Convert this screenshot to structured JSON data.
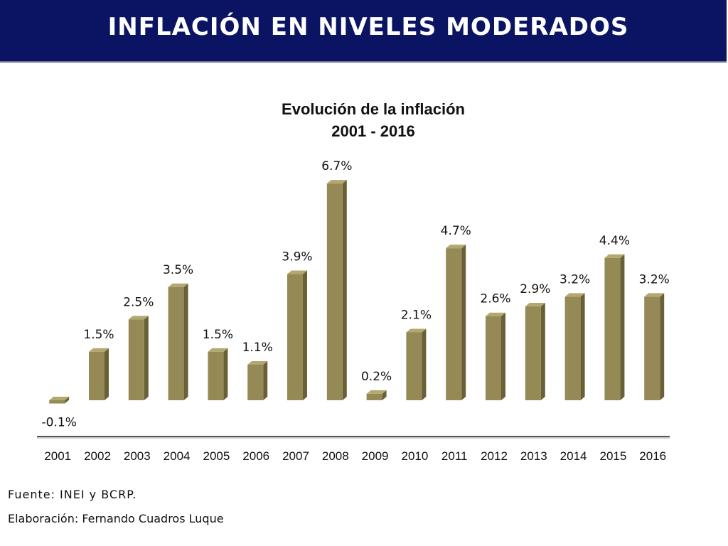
{
  "header": {
    "title": "INFLACIÓN EN NIVELES MODERADOS"
  },
  "colors": {
    "header_bg": "#0a1462",
    "bar_front": "#958a55",
    "bar_top": "#b3a870",
    "bar_side": "#6a6038"
  },
  "chart_data": {
    "type": "bar",
    "title": "Evolución de la inflación",
    "subtitle": "2001 - 2016",
    "categories": [
      "2001",
      "2002",
      "2003",
      "2004",
      "2005",
      "2006",
      "2007",
      "2008",
      "2009",
      "2010",
      "2011",
      "2012",
      "2013",
      "2014",
      "2015",
      "2016"
    ],
    "values": [
      -0.1,
      1.5,
      2.5,
      3.5,
      1.5,
      1.1,
      3.9,
      6.7,
      0.2,
      2.1,
      4.7,
      2.6,
      2.9,
      3.2,
      4.4,
      3.2
    ],
    "data_labels": [
      "-0.1%",
      "1.5%",
      "2.5%",
      "3.5%",
      "1.5%",
      "1.1%",
      "3.9%",
      "6.7%",
      "0.2%",
      "2.1%",
      "4.7%",
      "2.6%",
      "2.9%",
      "3.2%",
      "4.4%",
      "3.2%"
    ],
    "grid": false,
    "legend": "none",
    "style": "3d-bar"
  },
  "footer": {
    "source": "Fuente: INEI y BCRP.",
    "author": "Elaboración: Fernando Cuadros Luque"
  }
}
